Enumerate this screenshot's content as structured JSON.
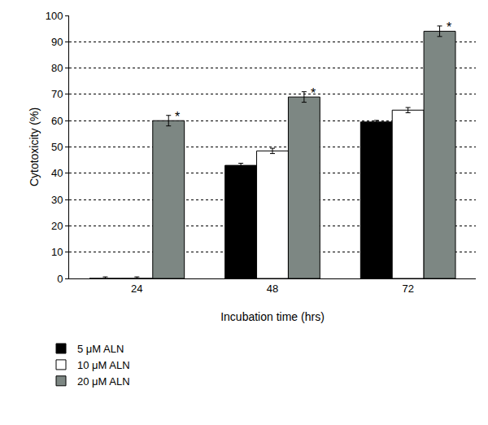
{
  "chart_data": {
    "type": "bar",
    "x_label": "Incubation time (hrs)",
    "y_label": "Cytotoxicity (%)",
    "categories": [
      "24",
      "48",
      "72"
    ],
    "series": [
      {
        "name": "5 μM ALN",
        "color": "#000000",
        "values": [
          0,
          43,
          59.5
        ],
        "errors": [
          0.6,
          0.8,
          0.6
        ]
      },
      {
        "name": "10 μM ALN",
        "color": "#ffffff",
        "values": [
          0,
          48.5,
          64
        ],
        "errors": [
          0.6,
          1,
          1
        ]
      },
      {
        "name": "20 μM ALN",
        "color": "#7d8783",
        "values": [
          60,
          69,
          94
        ],
        "errors": [
          2,
          2,
          2
        ]
      }
    ],
    "annotations": [
      {
        "category": "24",
        "series": "20 μM ALN",
        "text": "*"
      },
      {
        "category": "48",
        "series": "20 μM ALN",
        "text": "*"
      },
      {
        "category": "72",
        "series": "20 μM ALN",
        "text": "*"
      }
    ],
    "ylim": [
      0,
      100
    ],
    "yticks": [
      0,
      10,
      20,
      30,
      40,
      50,
      60,
      70,
      80,
      90,
      100
    ],
    "grid": true,
    "legend": "bottom left"
  }
}
